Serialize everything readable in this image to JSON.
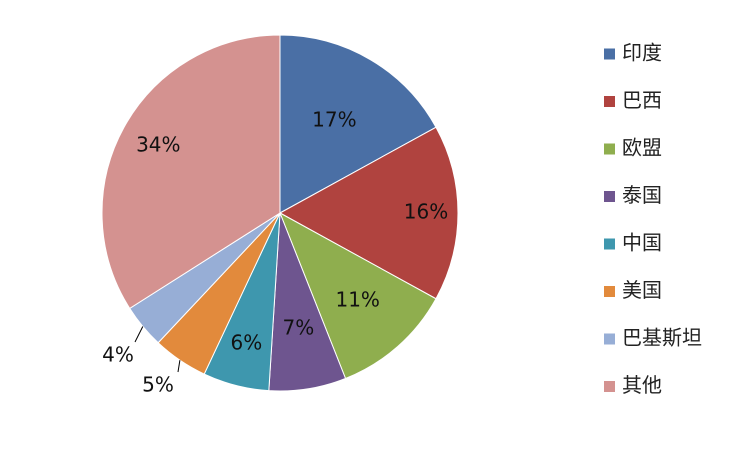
{
  "chart_data": {
    "type": "pie",
    "title": "",
    "categories": [
      "印度",
      "巴西",
      "欧盟",
      "泰国",
      "中国",
      "美国",
      "巴基斯坦",
      "其他"
    ],
    "values": [
      17,
      16,
      11,
      7,
      6,
      5,
      4,
      34
    ],
    "labels": [
      "17%",
      "16%",
      "11%",
      "7%",
      "6%",
      "5%",
      "4%",
      "34%"
    ],
    "colors": [
      "#4A6FA5",
      "#B0433F",
      "#8FAE4E",
      "#6E558F",
      "#3E97AE",
      "#E28A3C",
      "#97AED6",
      "#D49290"
    ],
    "legend_position": "right",
    "start_angle": "top",
    "direction": "clockwise"
  }
}
